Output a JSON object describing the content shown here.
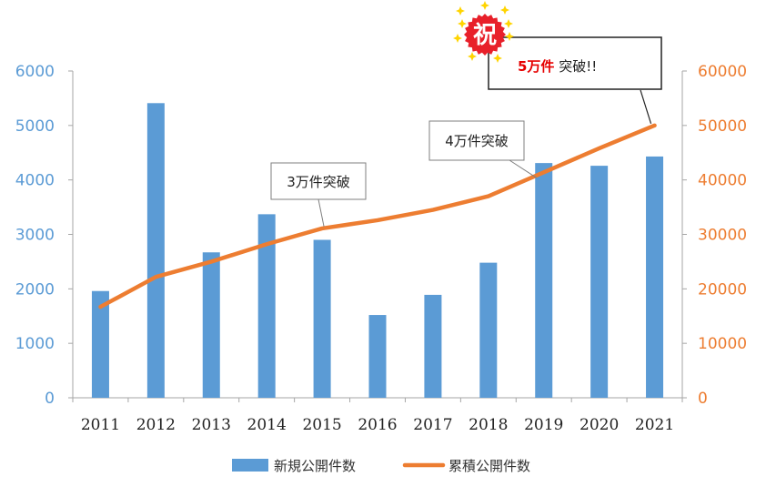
{
  "chart_data": {
    "type": "bar",
    "categories": [
      "2011",
      "2012",
      "2013",
      "2014",
      "2015",
      "2016",
      "2017",
      "2018",
      "2019",
      "2020",
      "2021"
    ],
    "series": [
      {
        "name": "新規公開件数",
        "type": "bar",
        "axis": "left",
        "color": "#5b9bd5",
        "values": [
          1960,
          5410,
          2670,
          3370,
          2900,
          1520,
          1890,
          2480,
          4310,
          4260,
          4430
        ]
      },
      {
        "name": "累積公開件数",
        "type": "line",
        "axis": "right",
        "color": "#ed7d31",
        "values": [
          16700,
          22200,
          25000,
          28200,
          31100,
          32600,
          34500,
          37000,
          41400,
          45800,
          50000
        ]
      }
    ],
    "y_left": {
      "range": [
        0,
        6000
      ],
      "ticks": [
        "0",
        "1000",
        "2000",
        "3000",
        "4000",
        "5000",
        "6000"
      ]
    },
    "y_right": {
      "range": [
        0,
        60000
      ],
      "ticks": [
        "0",
        "10000",
        "20000",
        "30000",
        "40000",
        "50000",
        "60000"
      ]
    },
    "grid": false,
    "legend_position": "bottom",
    "annotations": [
      {
        "id": "c30k",
        "text": "3万件突破",
        "category": "2015"
      },
      {
        "id": "c40k",
        "text": "4万件突破",
        "category": "2019"
      },
      {
        "id": "c50k",
        "number": "5万件",
        "suffix": " 突破!!",
        "category": "2021",
        "badge": "祝"
      }
    ]
  }
}
